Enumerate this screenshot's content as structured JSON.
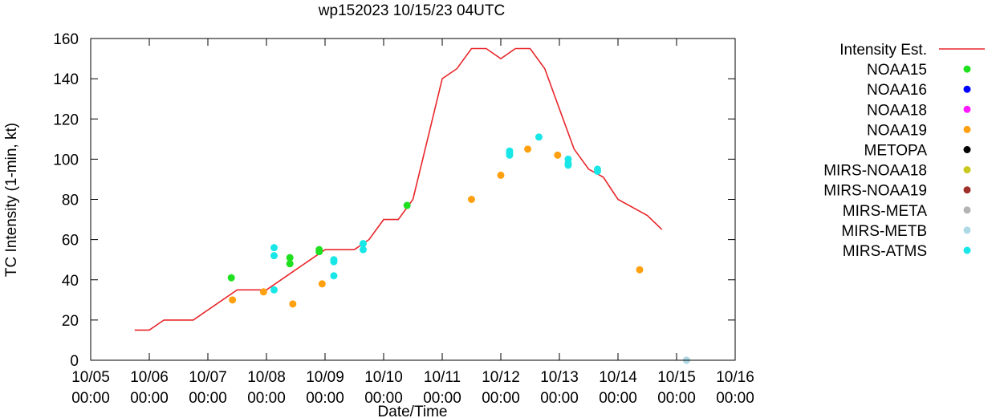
{
  "chart_data": {
    "type": "scatter",
    "title": "wp152023 10/15/23 04UTC",
    "xlabel": "Date/Time",
    "ylabel": "TC Intensity (1-min, kt)",
    "xlim": [
      0,
      11
    ],
    "ylim": [
      0,
      160
    ],
    "x_unit": "days since 10/05 00:00",
    "x_ticks": [
      {
        "value": 0,
        "date": "10/05",
        "time": "00:00"
      },
      {
        "value": 1,
        "date": "10/06",
        "time": "00:00"
      },
      {
        "value": 2,
        "date": "10/07",
        "time": "00:00"
      },
      {
        "value": 3,
        "date": "10/08",
        "time": "00:00"
      },
      {
        "value": 4,
        "date": "10/09",
        "time": "00:00"
      },
      {
        "value": 5,
        "date": "10/10",
        "time": "00:00"
      },
      {
        "value": 6,
        "date": "10/11",
        "time": "00:00"
      },
      {
        "value": 7,
        "date": "10/12",
        "time": "00:00"
      },
      {
        "value": 8,
        "date": "10/13",
        "time": "00:00"
      },
      {
        "value": 9,
        "date": "10/14",
        "time": "00:00"
      },
      {
        "value": 10,
        "date": "10/15",
        "time": "00:00"
      },
      {
        "value": 11,
        "date": "10/16",
        "time": "00:00"
      }
    ],
    "y_ticks": [
      0,
      20,
      40,
      60,
      80,
      100,
      120,
      140,
      160
    ],
    "series": [
      {
        "name": "Intensity Est.",
        "kind": "line",
        "color": "#e8262b",
        "points": [
          [
            0.75,
            15
          ],
          [
            1.0,
            15
          ],
          [
            1.25,
            20
          ],
          [
            1.75,
            20
          ],
          [
            2.5,
            35
          ],
          [
            3.0,
            35
          ],
          [
            3.5,
            45
          ],
          [
            4.0,
            55
          ],
          [
            4.5,
            55
          ],
          [
            4.75,
            60
          ],
          [
            5.0,
            70
          ],
          [
            5.25,
            70
          ],
          [
            5.5,
            80
          ],
          [
            5.75,
            110
          ],
          [
            6.0,
            140
          ],
          [
            6.25,
            145
          ],
          [
            6.5,
            155
          ],
          [
            6.75,
            155
          ],
          [
            7.0,
            150
          ],
          [
            7.25,
            155
          ],
          [
            7.5,
            155
          ],
          [
            7.75,
            145
          ],
          [
            8.0,
            125
          ],
          [
            8.25,
            105
          ],
          [
            8.5,
            95
          ],
          [
            8.75,
            91
          ],
          [
            9.0,
            80
          ],
          [
            9.5,
            72
          ],
          [
            9.75,
            65
          ]
        ]
      },
      {
        "name": "NOAA15",
        "kind": "points",
        "color": "#1ee01e",
        "points": [
          [
            2.4,
            41
          ],
          [
            3.4,
            51
          ],
          [
            3.4,
            48
          ],
          [
            3.9,
            55
          ],
          [
            3.9,
            54
          ],
          [
            5.4,
            77
          ]
        ]
      },
      {
        "name": "NOAA16",
        "kind": "points",
        "color": "#0000ff",
        "points": []
      },
      {
        "name": "NOAA18",
        "kind": "points",
        "color": "#ff1aff",
        "points": []
      },
      {
        "name": "NOAA19",
        "kind": "points",
        "color": "#ffa010",
        "points": [
          [
            2.42,
            30
          ],
          [
            2.95,
            34
          ],
          [
            3.45,
            28
          ],
          [
            3.95,
            38
          ],
          [
            6.5,
            80
          ],
          [
            7.0,
            92
          ],
          [
            7.46,
            105
          ],
          [
            7.97,
            102
          ],
          [
            9.37,
            45
          ]
        ]
      },
      {
        "name": "METOPA",
        "kind": "points",
        "color": "#000000",
        "points": []
      },
      {
        "name": "MIRS-NOAA18",
        "kind": "points",
        "color": "#c8c81e",
        "points": []
      },
      {
        "name": "MIRS-NOAA19",
        "kind": "points",
        "color": "#a0302a",
        "points": []
      },
      {
        "name": "MIRS-META",
        "kind": "points",
        "color": "#b4b4b4",
        "points": [
          [
            10.17,
            0
          ]
        ]
      },
      {
        "name": "MIRS-METB",
        "kind": "points",
        "color": "#add8e6",
        "points": [
          [
            10.17,
            0
          ]
        ]
      },
      {
        "name": "MIRS-ATMS",
        "kind": "points",
        "color": "#19e6e6",
        "points": [
          [
            3.13,
            56
          ],
          [
            3.13,
            52
          ],
          [
            3.13,
            35
          ],
          [
            4.15,
            50
          ],
          [
            4.15,
            49
          ],
          [
            4.15,
            42
          ],
          [
            4.65,
            58
          ],
          [
            4.65,
            55
          ],
          [
            7.15,
            104
          ],
          [
            7.15,
            103
          ],
          [
            7.15,
            102
          ],
          [
            7.65,
            111
          ],
          [
            8.15,
            100
          ],
          [
            8.15,
            98
          ],
          [
            8.15,
            97
          ],
          [
            8.65,
            95
          ],
          [
            8.65,
            94
          ]
        ]
      }
    ],
    "legend_position": "right"
  }
}
